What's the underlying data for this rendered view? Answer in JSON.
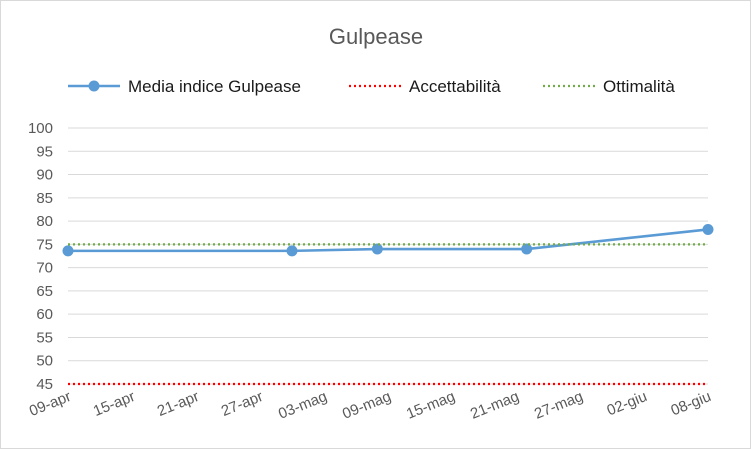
{
  "chart_data": {
    "type": "line",
    "title": "Gulpease",
    "xlabel": "",
    "ylabel": "",
    "x_ticks": [
      "09-apr",
      "15-apr",
      "21-apr",
      "27-apr",
      "03-mag",
      "09-mag",
      "15-mag",
      "21-mag",
      "27-mag",
      "02-giu",
      "08-giu"
    ],
    "y_ticks": [
      45,
      50,
      55,
      60,
      65,
      70,
      75,
      80,
      85,
      90,
      95,
      100
    ],
    "ylim": [
      45,
      100
    ],
    "xlim": [
      "2020-04-09",
      "2020-06-08"
    ],
    "grid": "horizontal",
    "legend_position": "top",
    "series": [
      {
        "name": "Media indice Gulpease",
        "style": "solid-markers",
        "color": "#5B9BD5",
        "points": [
          {
            "x": "2020-04-09",
            "y": 73.6
          },
          {
            "x": "2020-04-30",
            "y": 73.6
          },
          {
            "x": "2020-05-08",
            "y": 74.0
          },
          {
            "x": "2020-05-22",
            "y": 74.0
          },
          {
            "x": "2020-06-08",
            "y": 78.2
          }
        ]
      },
      {
        "name": "Accettabilità",
        "style": "dotted",
        "color": "#FF0000",
        "points": [
          {
            "x": "2020-04-09",
            "y": 45
          },
          {
            "x": "2020-06-08",
            "y": 45
          }
        ]
      },
      {
        "name": "Ottimalità",
        "style": "dotted",
        "color": "#70AD47",
        "points": [
          {
            "x": "2020-04-09",
            "y": 75
          },
          {
            "x": "2020-06-08",
            "y": 75
          }
        ]
      }
    ]
  }
}
